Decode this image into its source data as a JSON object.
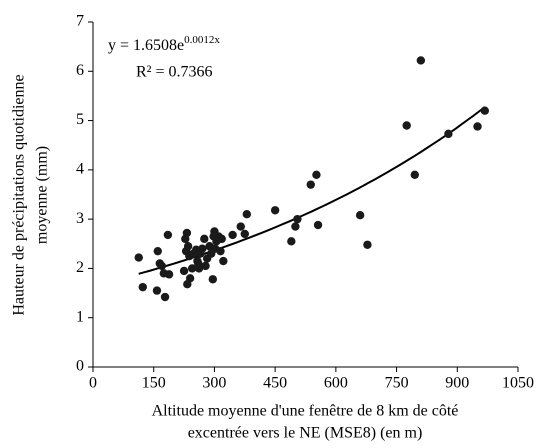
{
  "chart_data": {
    "type": "scatter",
    "x_label": [
      "Altitude moyenne d'une fenêtre de 8 km de côté",
      "excentrée vers le NE (MSE8) (en m)"
    ],
    "y_label": [
      "Hauteur de précipitations quotidienne",
      "moyenne (mm)"
    ],
    "equation": {
      "prefix": "y = 1.6508e",
      "exponent": "0.0012x"
    },
    "r2": "R² = 0.7366",
    "color": "#1a1a1a",
    "xlim": [
      0,
      1050
    ],
    "xticks": [
      0,
      150,
      300,
      450,
      600,
      750,
      900,
      1050
    ],
    "ylim": [
      0,
      7
    ],
    "yticks": [
      0,
      1,
      2,
      3,
      4,
      5,
      6,
      7
    ],
    "x": [
      113,
      123,
      158,
      160,
      165,
      170,
      175,
      178,
      185,
      188,
      225,
      228,
      230,
      232,
      233,
      235,
      238,
      240,
      245,
      248,
      255,
      258,
      260,
      262,
      265,
      270,
      275,
      278,
      282,
      288,
      292,
      296,
      298,
      300,
      302,
      305,
      310,
      315,
      318,
      322,
      345,
      365,
      375,
      380,
      450,
      490,
      500,
      505,
      538,
      552,
      556,
      660,
      678,
      775,
      795,
      810,
      878,
      950,
      968
    ],
    "values": [
      2.22,
      1.62,
      1.55,
      2.35,
      2.1,
      2.05,
      1.9,
      1.42,
      2.68,
      1.88,
      1.95,
      2.6,
      2.35,
      2.72,
      1.68,
      2.45,
      2.25,
      1.8,
      2.0,
      2.3,
      2.38,
      2.15,
      2.1,
      2.0,
      2.3,
      2.4,
      2.6,
      2.05,
      2.2,
      2.45,
      2.3,
      1.78,
      2.65,
      2.75,
      2.4,
      2.55,
      2.65,
      2.35,
      2.6,
      2.15,
      2.68,
      2.85,
      2.7,
      3.1,
      3.18,
      2.55,
      2.85,
      3.0,
      3.7,
      3.9,
      2.88,
      3.08,
      2.48,
      4.9,
      3.9,
      6.22,
      4.73,
      4.88,
      5.2
    ]
  }
}
